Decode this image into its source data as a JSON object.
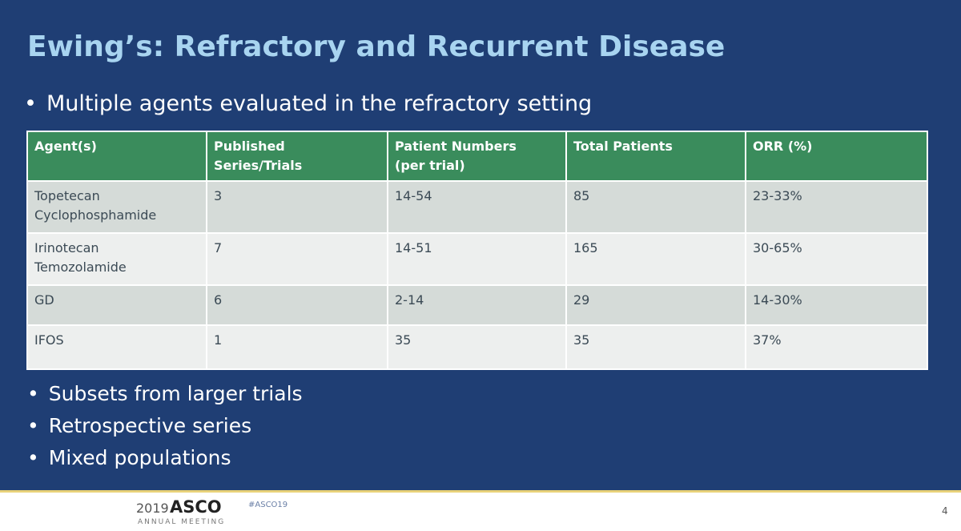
{
  "slide": {
    "title": "Ewing’s: Refractory and Recurrent Disease",
    "intro_bullet": "Multiple agents evaluated in the refractory setting",
    "table": {
      "header": [
        "Agent(s)",
        "Published\nSeries/Trials",
        "Patient Numbers\n(per trial)",
        "Total Patients",
        "ORR (%)"
      ],
      "rows": [
        [
          "Topetecan\nCyclophosphamide",
          "3",
          "14-54",
          "85",
          "23-33%"
        ],
        [
          "Irinotecan\nTemozolamide",
          "7",
          "14-51",
          "165",
          "30-65%"
        ],
        [
          "GD",
          "6",
          "2-14",
          "29",
          "14-30%"
        ],
        [
          "IFOS",
          "1",
          "35",
          "35",
          "37%"
        ]
      ]
    },
    "bullets": [
      "Subsets from larger trials",
      "Retrospective series",
      "Mixed populations"
    ]
  },
  "footer": {
    "year": "2019",
    "brand": "ASCO",
    "meeting": "ANNUAL MEETING",
    "hashtag": "#ASCO19",
    "page_number": "4"
  }
}
